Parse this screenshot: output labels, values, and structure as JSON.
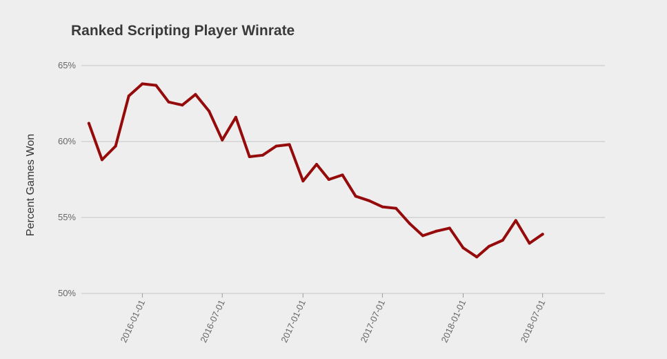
{
  "chart_data": {
    "type": "line",
    "title": "Ranked Scripting Player Winrate",
    "xlabel": "",
    "ylabel": "Percent Games Won",
    "ylim": [
      50,
      65
    ],
    "y_ticks": [
      50,
      55,
      60,
      65
    ],
    "y_tick_labels": [
      "50%",
      "55%",
      "60%",
      "65%"
    ],
    "x_range": [
      "2015-08-15",
      "2018-11-20"
    ],
    "x_ticks": [
      "2016-01-01",
      "2016-07-01",
      "2017-01-01",
      "2017-07-01",
      "2018-01-01",
      "2018-07-01"
    ],
    "grid": "horizontal",
    "legend": "none",
    "color": "#950a0a",
    "series": [
      {
        "x": [
          "2015-09-01",
          "2015-10-01",
          "2015-11-01",
          "2015-12-01",
          "2016-01-01",
          "2016-02-01",
          "2016-03-01",
          "2016-04-01",
          "2016-05-01",
          "2016-06-01",
          "2016-07-01",
          "2016-08-01",
          "2016-09-01",
          "2016-10-01",
          "2016-11-01",
          "2016-12-01",
          "2017-01-01",
          "2017-02-01",
          "2017-03-01",
          "2017-04-01",
          "2017-05-01",
          "2017-06-01",
          "2017-07-01",
          "2017-08-01",
          "2017-09-01",
          "2017-10-01",
          "2017-11-01",
          "2017-12-01",
          "2018-01-01",
          "2018-02-01",
          "2018-03-01",
          "2018-04-01",
          "2018-05-01",
          "2018-06-01",
          "2018-07-01",
          "2018-08-01",
          "2018-09-01"
        ],
        "values": [
          61.2,
          58.8,
          59.7,
          63.0,
          63.8,
          63.7,
          62.6,
          62.4,
          63.1,
          62.0,
          60.1,
          61.6,
          59.0,
          59.1,
          59.7,
          59.8,
          57.4,
          58.5,
          57.5,
          57.8,
          56.4,
          56.1,
          55.7,
          55.6,
          54.6,
          53.8,
          54.1,
          54.3,
          53.0,
          52.4,
          53.1,
          53.5,
          54.8,
          53.3,
          53.9,
          null,
          null
        ]
      }
    ]
  }
}
